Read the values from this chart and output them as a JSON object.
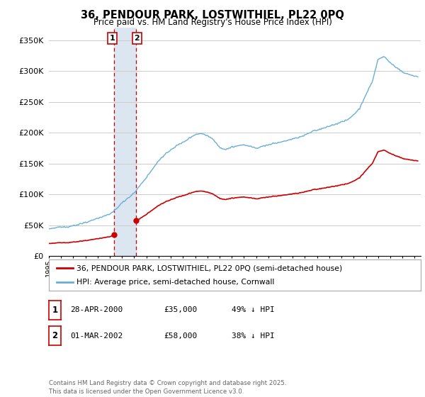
{
  "title": "36, PENDOUR PARK, LOSTWITHIEL, PL22 0PQ",
  "subtitle": "Price paid vs. HM Land Registry's House Price Index (HPI)",
  "ylabel_ticks": [
    "£0",
    "£50K",
    "£100K",
    "£150K",
    "£200K",
    "£250K",
    "£300K",
    "£350K"
  ],
  "ytick_vals": [
    0,
    50000,
    100000,
    150000,
    200000,
    250000,
    300000,
    350000
  ],
  "ylim": [
    0,
    370000
  ],
  "xlim_start": 1995.0,
  "xlim_end": 2025.5,
  "hpi_color": "#6aaed6",
  "price_color": "#cc0000",
  "sale1_date": 2000.33,
  "sale1_price": 35000,
  "sale2_date": 2002.17,
  "sale2_price": 58000,
  "legend_line1": "36, PENDOUR PARK, LOSTWITHIEL, PL22 0PQ (semi-detached house)",
  "legend_line2": "HPI: Average price, semi-detached house, Cornwall",
  "table_row1": [
    "1",
    "28-APR-2000",
    "£35,000",
    "49% ↓ HPI"
  ],
  "table_row2": [
    "2",
    "01-MAR-2002",
    "£58,000",
    "38% ↓ HPI"
  ],
  "footnote": "Contains HM Land Registry data © Crown copyright and database right 2025.\nThis data is licensed under the Open Government Licence v3.0.",
  "background_color": "#ffffff",
  "grid_color": "#cccccc",
  "shaded_region_color": "#dce6f1"
}
